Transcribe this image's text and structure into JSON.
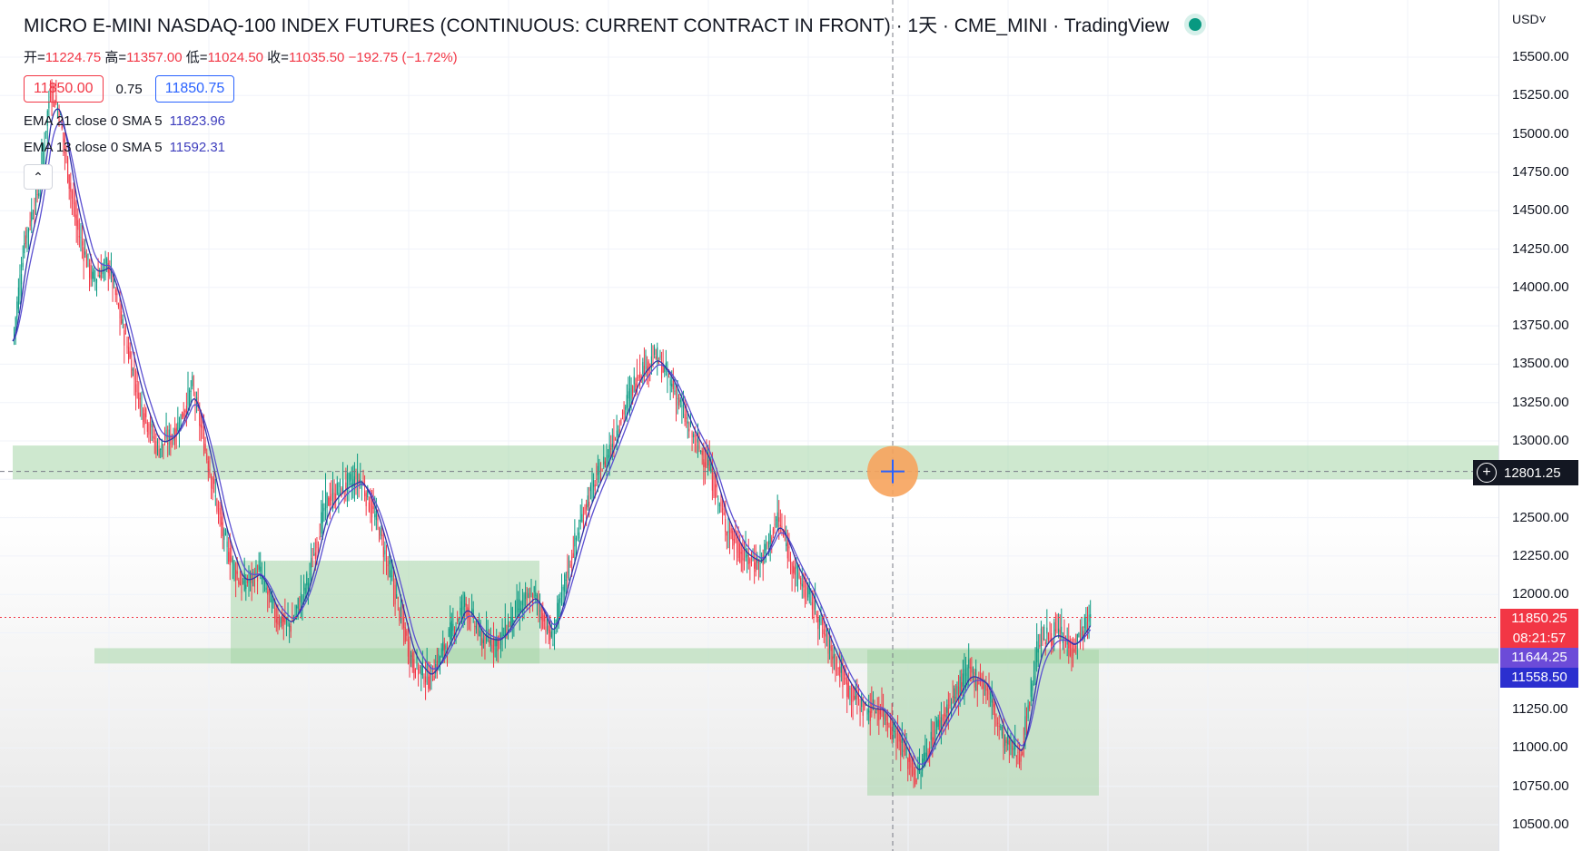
{
  "header": {
    "title": "MICRO E-MINI NASDAQ-100 INDEX FUTURES (CONTINUOUS: CURRENT CONTRACT IN FRONT) · 1天 · CME_MINI · TradingView",
    "ohlc": {
      "open_label": "开=",
      "open": "11224.75",
      "high_label": "高=",
      "high": "11357.00",
      "low_label": "低=",
      "low": "11024.50",
      "close_label": "收=",
      "close": "11035.50",
      "change": "−192.75 (−1.72%)"
    },
    "bid": "11850.00",
    "spread": "0.75",
    "ask": "11850.75",
    "indicators": [
      {
        "label": "EMA 21 close 0 SMA 5",
        "value": "11823.96"
      },
      {
        "label": "EMA 13 close 0 SMA 5",
        "value": "11592.31"
      }
    ],
    "collapse_icon": "chevron-up-icon"
  },
  "price_scale": {
    "currency": "USD˅",
    "ticks": [
      "15500.00",
      "15250.00",
      "15000.00",
      "14750.00",
      "14500.00",
      "14250.00",
      "14000.00",
      "13750.00",
      "13500.00",
      "13250.00",
      "13000.00",
      "12750.00",
      "12500.00",
      "12250.00",
      "12000.00",
      "11750.00",
      "11500.00",
      "11250.00",
      "11000.00",
      "10750.00",
      "10500.00"
    ]
  },
  "price_tags": {
    "crosshair_price": "12801.25",
    "last_price": "11850.25",
    "countdown": "08:21:57",
    "ema21": "11644.25",
    "ema13": "11558.50"
  },
  "colors": {
    "up": "#089981",
    "down": "#f23645",
    "ema21": "#5b4fd1",
    "ema13": "#3333a8",
    "zone": "#a5d6a7",
    "crosshair_marker": "#f7a35c"
  },
  "chart_data": {
    "type": "candlestick",
    "ylim": [
      10500,
      15500
    ],
    "last_price": 11850.25,
    "crosshair_price": 12801.25,
    "zones": [
      {
        "from": 12750,
        "to": 12970
      },
      {
        "from": 11550,
        "to": 11650
      },
      {
        "from": 11550,
        "to": 12220
      },
      {
        "from": 10690,
        "to": 11640
      }
    ],
    "series": [
      {
        "name": "EMA 21 close 0 SMA 5",
        "value": 11823.96,
        "current": 11644.25
      },
      {
        "name": "EMA 13 close 0 SMA 5",
        "value": 11592.31,
        "current": 11558.5
      }
    ],
    "anchors": [
      [
        0,
        13650
      ],
      [
        8,
        14300
      ],
      [
        18,
        14650
      ],
      [
        26,
        15300
      ],
      [
        32,
        15150
      ],
      [
        38,
        14750
      ],
      [
        44,
        14400
      ],
      [
        55,
        14050
      ],
      [
        66,
        14150
      ],
      [
        78,
        13650
      ],
      [
        88,
        13250
      ],
      [
        100,
        12950
      ],
      [
        112,
        13050
      ],
      [
        124,
        13350
      ],
      [
        135,
        12850
      ],
      [
        146,
        12350
      ],
      [
        158,
        12050
      ],
      [
        170,
        12150
      ],
      [
        182,
        11850
      ],
      [
        192,
        11800
      ],
      [
        204,
        12100
      ],
      [
        216,
        12600
      ],
      [
        228,
        12700
      ],
      [
        240,
        12750
      ],
      [
        252,
        12450
      ],
      [
        264,
        12000
      ],
      [
        276,
        11550
      ],
      [
        288,
        11450
      ],
      [
        300,
        11700
      ],
      [
        312,
        11950
      ],
      [
        324,
        11700
      ],
      [
        336,
        11700
      ],
      [
        348,
        11900
      ],
      [
        360,
        12000
      ],
      [
        372,
        11700
      ],
      [
        384,
        12200
      ],
      [
        396,
        12600
      ],
      [
        408,
        12850
      ],
      [
        420,
        13150
      ],
      [
        432,
        13450
      ],
      [
        444,
        13550
      ],
      [
        456,
        13350
      ],
      [
        468,
        13050
      ],
      [
        480,
        12850
      ],
      [
        492,
        12450
      ],
      [
        504,
        12250
      ],
      [
        516,
        12200
      ],
      [
        528,
        12500
      ],
      [
        540,
        12150
      ],
      [
        552,
        11950
      ],
      [
        564,
        11650
      ],
      [
        576,
        11400
      ],
      [
        588,
        11250
      ],
      [
        600,
        11250
      ],
      [
        612,
        11050
      ],
      [
        624,
        10800
      ],
      [
        636,
        11100
      ],
      [
        648,
        11300
      ],
      [
        660,
        11500
      ],
      [
        672,
        11400
      ],
      [
        684,
        11050
      ],
      [
        696,
        10950
      ],
      [
        708,
        11700
      ],
      [
        720,
        11750
      ],
      [
        732,
        11650
      ],
      [
        744,
        11850
      ]
    ]
  }
}
